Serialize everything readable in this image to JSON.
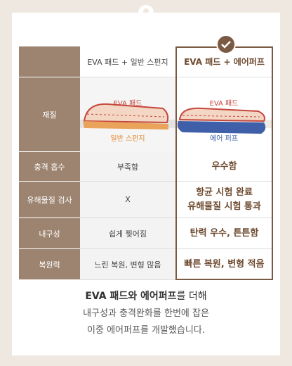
{
  "table": {
    "columns": [
      "EVA 패드 + 일반 스펀지",
      "EVA 패드 + 에어퍼프"
    ],
    "material": {
      "label": "재질",
      "left": {
        "top": "EVA 패드",
        "bottom": "일반 스펀지"
      },
      "right": {
        "top": "EVA 패드",
        "bottom": "에어 퍼프"
      }
    },
    "rows": [
      {
        "label": "충격 흡수",
        "left": "부족함",
        "right": [
          "우수함"
        ]
      },
      {
        "label": "유해물질 검사",
        "left": "X",
        "right": [
          "항균 시험 완료",
          "유해물질 시험 통과"
        ]
      },
      {
        "label": "내구성",
        "left": "쉽게 찢어짐",
        "right": [
          "탄력 우수, 튼튼함"
        ]
      },
      {
        "label": "복원력",
        "left": "느린 복원, 변형 많음",
        "right": [
          "빠른 복원, 변형 적음"
        ]
      }
    ]
  },
  "footer": {
    "emphasis": "EVA 패드와 에어퍼프",
    "rest": "를 더해",
    "lines": [
      "내구성과 충격완화를 한번에 잡은",
      "이중 에어퍼프를 개발했습니다."
    ]
  }
}
